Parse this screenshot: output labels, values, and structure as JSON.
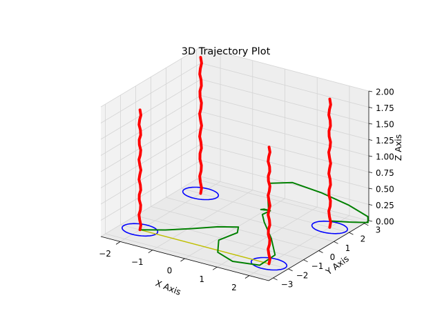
{
  "chart_data": {
    "type": "line3d",
    "title": "3D Trajectory Plot",
    "xlabel": "X Axis",
    "ylabel": "Y Axis",
    "zlabel": "Z Axis",
    "xlim": [
      -2.6,
      2.6
    ],
    "ylim": [
      -3.3,
      3.3
    ],
    "zlim": [
      0,
      2
    ],
    "xticks": [
      -2,
      -1,
      0,
      1,
      2
    ],
    "yticks": [
      -3,
      -2,
      -1,
      0,
      1,
      2,
      3
    ],
    "zticks": [
      0.0,
      0.25,
      0.5,
      0.75,
      1.0,
      1.25,
      1.5,
      1.75,
      2.0
    ],
    "xtick_labels": [
      "−2",
      "−1",
      "0",
      "1",
      "2"
    ],
    "ytick_labels": [
      "−3",
      "−2",
      "−1",
      "0",
      "1",
      "2",
      "3"
    ],
    "ztick_labels": [
      "0.00",
      "0.25",
      "0.50",
      "0.75",
      "1.00",
      "1.25",
      "1.50",
      "1.75",
      "2.00"
    ],
    "grid": true,
    "colors": {
      "pillars": "#ff0000",
      "circles": "#0000ff",
      "trajectory": "#008000",
      "segment": "#bfbf00",
      "pane": "#f2f2f2"
    },
    "pillars": [
      {
        "x": -2.0,
        "y": -2.0,
        "z": [
          0.0,
          1.85
        ]
      },
      {
        "x": -2.0,
        "y": 2.0,
        "z": [
          0.0,
          2.1
        ]
      },
      {
        "x": 2.0,
        "y": -2.0,
        "z": [
          0.0,
          1.8
        ]
      },
      {
        "x": 2.0,
        "y": 2.0,
        "z": [
          0.0,
          1.98
        ]
      }
    ],
    "circles": [
      {
        "cx": -2.0,
        "cy": -2.0,
        "z": 0.0,
        "r": 0.5
      },
      {
        "cx": -2.0,
        "cy": 2.0,
        "z": 0.0,
        "r": 0.5
      },
      {
        "cx": 2.0,
        "cy": -2.0,
        "z": 0.0,
        "r": 0.5
      },
      {
        "cx": 2.0,
        "cy": 2.0,
        "z": 0.0,
        "r": 0.5
      }
    ],
    "segment": [
      {
        "x": -2.0,
        "y": -2.0,
        "z": 0.0
      },
      {
        "x": 2.0,
        "y": -2.0,
        "z": 0.0
      }
    ],
    "trajectory": [
      {
        "x": -2.0,
        "y": -2.0,
        "z": 0.0
      },
      {
        "x": -1.4,
        "y": -1.6,
        "z": 0.02
      },
      {
        "x": -0.8,
        "y": -1.1,
        "z": 0.05
      },
      {
        "x": -0.2,
        "y": -0.7,
        "z": 0.1
      },
      {
        "x": 0.3,
        "y": -0.4,
        "z": 0.12
      },
      {
        "x": 0.55,
        "y": -1.0,
        "z": 0.15
      },
      {
        "x": 0.3,
        "y": -1.7,
        "z": 0.1
      },
      {
        "x": 0.6,
        "y": -2.4,
        "z": 0.05
      },
      {
        "x": 1.2,
        "y": -2.7,
        "z": 0.03
      },
      {
        "x": 1.9,
        "y": -2.4,
        "z": 0.02
      },
      {
        "x": 2.0,
        "y": -1.6,
        "z": 0.08
      },
      {
        "x": 1.6,
        "y": -1.0,
        "z": 0.2
      },
      {
        "x": 1.1,
        "y": -0.4,
        "z": 0.3
      },
      {
        "x": 0.9,
        "y": -0.1,
        "z": 0.35
      },
      {
        "x": 1.1,
        "y": 0.0,
        "z": 0.42
      },
      {
        "x": 1.05,
        "y": -0.3,
        "z": 0.48
      },
      {
        "x": 0.9,
        "y": -0.2,
        "z": 0.44
      },
      {
        "x": 1.0,
        "y": 0.1,
        "z": 0.4
      },
      {
        "x": 0.6,
        "y": 0.9,
        "z": 0.45
      },
      {
        "x": 0.3,
        "y": 1.7,
        "z": 0.5
      },
      {
        "x": 0.7,
        "y": 2.3,
        "z": 0.48
      },
      {
        "x": 1.5,
        "y": 2.5,
        "z": 0.4
      },
      {
        "x": 2.3,
        "y": 2.6,
        "z": 0.3
      },
      {
        "x": 2.9,
        "y": 2.6,
        "z": 0.2
      },
      {
        "x": 3.0,
        "y": 2.4,
        "z": 0.15
      },
      {
        "x": 2.5,
        "y": 2.2,
        "z": 0.12
      },
      {
        "x": 2.0,
        "y": 2.0,
        "z": 0.1
      }
    ]
  }
}
